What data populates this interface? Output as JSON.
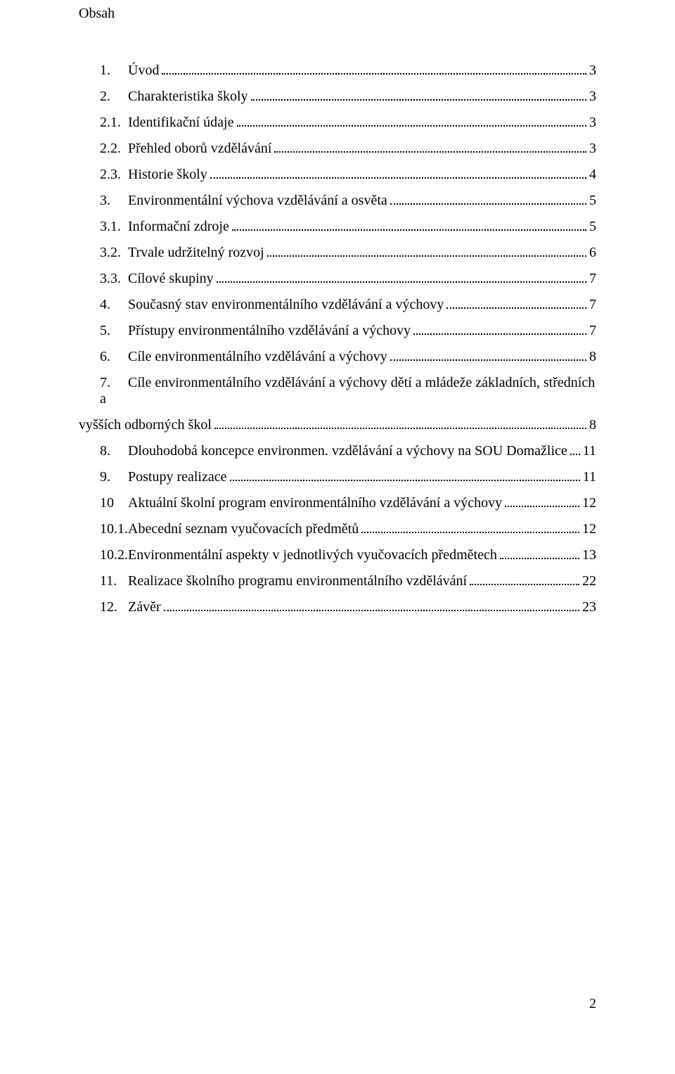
{
  "title": "Obsah",
  "page_number": "2",
  "toc": [
    {
      "num": "1.",
      "label": "Úvod",
      "page": "3",
      "indent": 1,
      "num_width": 40
    },
    {
      "num": "2.",
      "label": "Charakteristika školy",
      "page": "3",
      "indent": 1,
      "num_width": 40
    },
    {
      "num": "2.1.",
      "label": "Identifikační údaje",
      "page": "3",
      "indent": 1,
      "num_width": 40
    },
    {
      "num": "2.2.",
      "label": "Přehled oborů vzdělávání",
      "page": "3",
      "indent": 1,
      "num_width": 40
    },
    {
      "num": "2.3.",
      "label": "Historie školy",
      "page": "4",
      "indent": 1,
      "num_width": 40
    },
    {
      "num": "3.",
      "label": "Environmentální výchova vzdělávání a osvěta",
      "page": "5",
      "indent": 1,
      "num_width": 40
    },
    {
      "num": "3.1.",
      "label": "Informační zdroje",
      "page": "5",
      "indent": 1,
      "num_width": 40
    },
    {
      "num": "3.2.",
      "label": "Trvale udržitelný rozvoj",
      "page": "6",
      "indent": 1,
      "num_width": 40
    },
    {
      "num": "3.3.",
      "label": "Cílové skupiny",
      "page": "7",
      "indent": 1,
      "num_width": 40
    },
    {
      "num": "4.",
      "label": " Současný stav environmentálního vzdělávání a výchovy",
      "page": "7",
      "indent": 1,
      "num_width": 40
    },
    {
      "num": "5.",
      "label": "Přístupy environmentálního vzdělávání a výchovy",
      "page": "7",
      "indent": 1,
      "num_width": 40
    },
    {
      "num": "6.",
      "label": "Cíle environmentálního vzdělávání a výchovy",
      "page": "8",
      "indent": 1,
      "num_width": 40
    },
    {
      "num": "7.",
      "label_line1": "Cíle environmentálního vzdělávání a výchovy dětí a mládeže základních, středních a",
      "label_line2": "vyšších odborných škol",
      "page": "8",
      "indent": 1,
      "num_width": 40,
      "wrap": true
    },
    {
      "num": "8.",
      "label": "Dlouhodobá koncepce environmen. vzdělávání a výchovy na SOU Domažlice",
      "page": "11",
      "indent": 1,
      "num_width": 40
    },
    {
      "num": "9.",
      "label": "Postupy realizace",
      "page": "11",
      "indent": 1,
      "num_width": 40
    },
    {
      "num": "10",
      "label": "Aktuální školní program  environmentálního vzdělávání a výchovy",
      "page": "12",
      "indent": 1,
      "num_width": 40
    },
    {
      "num": "10.1.",
      "label": "Abecední seznam vyučovacích předmětů",
      "page": "12",
      "indent": 1,
      "num_width": 46,
      "no_gap": true
    },
    {
      "num": "10.2.",
      "label": "Environmentální aspekty v jednotlivých vyučovacích předmětech",
      "page": "13",
      "indent": 1,
      "num_width": 46,
      "no_gap": true
    },
    {
      "num": "11.",
      "label": "Realizace školního programu environmentálního vzdělávání",
      "page": "22",
      "indent": 1,
      "num_width": 40
    },
    {
      "num": "12.",
      "label": "Závěr",
      "page": "23",
      "indent": 1,
      "num_width": 40
    }
  ]
}
